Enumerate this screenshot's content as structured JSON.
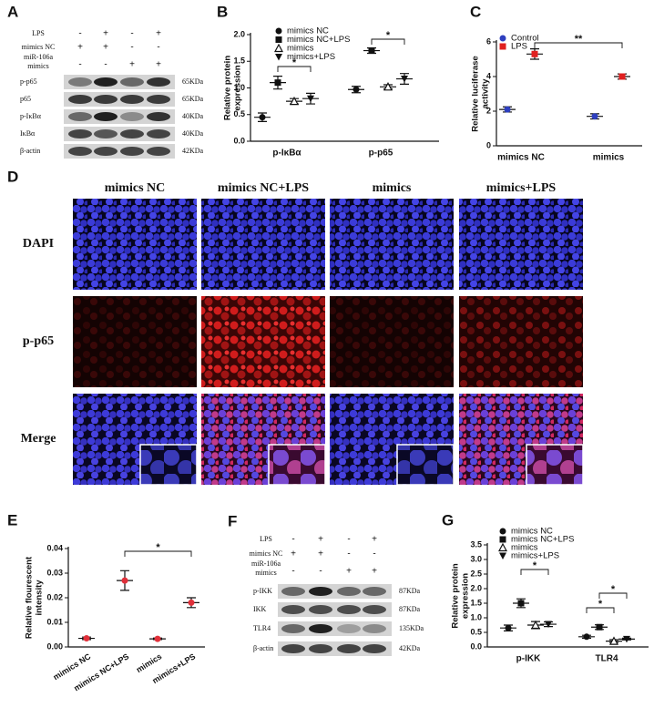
{
  "blot_a": {
    "letter": "A",
    "treatments": [
      {
        "label": [
          "LPS"
        ],
        "signs": [
          "-",
          "+",
          "-",
          "+"
        ]
      },
      {
        "label": [
          "mimics NC"
        ],
        "signs": [
          "+",
          "+",
          "-",
          "-"
        ]
      },
      {
        "label": [
          "miR-106a",
          "mimics"
        ],
        "signs": [
          "-",
          "-",
          "+",
          "+"
        ]
      }
    ],
    "bands": [
      {
        "name": "p-p65",
        "size": "65KDa"
      },
      {
        "name": "p65",
        "size": "65KDa"
      },
      {
        "name": "p-IκBα",
        "size": "40KDa"
      },
      {
        "name": "IκBα",
        "size": "40KDa"
      },
      {
        "name": "β-actin",
        "size": "42KDa"
      }
    ]
  },
  "micrographs": {
    "letter": "D",
    "columns": [
      "mimics NC",
      "mimics NC+LPS",
      "mimics",
      "mimics+LPS"
    ],
    "rows": [
      "DAPI",
      "p-p65",
      "Merge"
    ]
  },
  "blot_f": {
    "letter": "F",
    "treatments": [
      {
        "label": [
          "LPS"
        ],
        "signs": [
          "-",
          "+",
          "-",
          "+"
        ]
      },
      {
        "label": [
          "mimics NC"
        ],
        "signs": [
          "+",
          "+",
          "-",
          "-"
        ]
      },
      {
        "label": [
          "miR-106a",
          "mimics"
        ],
        "signs": [
          "-",
          "-",
          "+",
          "+"
        ]
      }
    ],
    "bands": [
      {
        "name": "p-IKK",
        "size": "87KDa"
      },
      {
        "name": "IKK",
        "size": "87KDa"
      },
      {
        "name": "TLR4",
        "size": "135KDa"
      },
      {
        "name": "β-actin",
        "size": "42KDa"
      }
    ]
  },
  "chart_data": [
    {
      "type": "dot",
      "letter": "B",
      "ylabel": [
        "Relative protein",
        "expression"
      ],
      "categories": [
        "p-IκBα",
        "p-p65"
      ],
      "series": [
        {
          "name": "mimics NC",
          "color": "#111111",
          "marker": "circle",
          "values": [
            0.45,
            0.97
          ],
          "errors": [
            0.08,
            0.06
          ]
        },
        {
          "name": "mimics NC+LPS",
          "color": "#111111",
          "marker": "square",
          "values": [
            1.1,
            1.7
          ],
          "errors": [
            0.12,
            0.05
          ]
        },
        {
          "name": "mimics",
          "color": "#111111",
          "marker": "triangle-open",
          "values": [
            0.75,
            1.02
          ],
          "errors": [
            0.05,
            0.04
          ]
        },
        {
          "name": "mimics+LPS",
          "color": "#111111",
          "marker": "triangle-down",
          "values": [
            0.8,
            1.17
          ],
          "errors": [
            0.1,
            0.1
          ]
        }
      ],
      "ylim": [
        0,
        2
      ],
      "yticks": [
        {
          "value": 0,
          "label": "0.0"
        },
        0.5,
        {
          "value": 1,
          "label": "1.0"
        },
        1.5,
        {
          "value": 2,
          "label": "2.0"
        }
      ],
      "annotations": [
        "*",
        "*"
      ]
    },
    {
      "type": "dot",
      "letter": "C",
      "ylabel": [
        "Relative luciferase",
        "activity"
      ],
      "categories": [
        "mimics NC",
        "mimics"
      ],
      "series": [
        {
          "name": "Control",
          "color": "#2e3fbf",
          "marker": "circle",
          "values": [
            2.1,
            1.7
          ],
          "errors": [
            0.15,
            0.15
          ]
        },
        {
          "name": "LPS",
          "color": "#e02020",
          "marker": "square",
          "values": [
            5.3,
            4.0
          ],
          "errors": [
            0.3,
            0.15
          ]
        }
      ],
      "ylim": [
        0,
        6
      ],
      "yticks": [
        0,
        2,
        4,
        6
      ],
      "annotations": [
        "**"
      ]
    },
    {
      "type": "dot",
      "letter": "E",
      "ylabel": [
        "Relative flourescent",
        "intensity"
      ],
      "categories": [
        "mimics NC",
        "mimics NC+LPS",
        "mimics",
        "mimics+LPS"
      ],
      "values": [
        0.0035,
        0.027,
        0.0033,
        0.018
      ],
      "errors": [
        0.0005,
        0.004,
        0.0003,
        0.002
      ],
      "color": "#e0303a",
      "marker": "circle",
      "ylim": [
        0,
        0.04
      ],
      "yticks": [
        {
          "value": 0,
          "label": "0.00"
        },
        0.01,
        0.02,
        0.03,
        0.04
      ],
      "annotations": [
        "*"
      ]
    },
    {
      "type": "dot",
      "letter": "G",
      "ylabel": [
        "Relative protein",
        "expression"
      ],
      "categories": [
        "p-IKK",
        "TLR4"
      ],
      "series": [
        {
          "name": "mimics NC",
          "color": "#111111",
          "marker": "circle",
          "values": [
            0.65,
            0.35
          ],
          "errors": [
            0.1,
            0.05
          ]
        },
        {
          "name": "mimics NC+LPS",
          "color": "#111111",
          "marker": "square",
          "values": [
            1.5,
            0.68
          ],
          "errors": [
            0.15,
            0.08
          ]
        },
        {
          "name": "mimics",
          "color": "#111111",
          "marker": "triangle-open",
          "values": [
            0.75,
            0.2
          ],
          "errors": [
            0.12,
            0.05
          ]
        },
        {
          "name": "mimics+LPS",
          "color": "#111111",
          "marker": "triangle-down",
          "values": [
            0.78,
            0.27
          ],
          "errors": [
            0.08,
            0.03
          ]
        }
      ],
      "ylim": [
        0,
        3.5
      ],
      "yticks": [
        {
          "value": 0,
          "label": "0.0"
        },
        0.5,
        {
          "value": 1,
          "label": "1.0"
        },
        1.5,
        {
          "value": 2,
          "label": "2.0"
        },
        2.5,
        {
          "value": 3,
          "label": "3.0"
        },
        3.5
      ],
      "annotations": [
        "*",
        "*",
        "*"
      ]
    }
  ]
}
